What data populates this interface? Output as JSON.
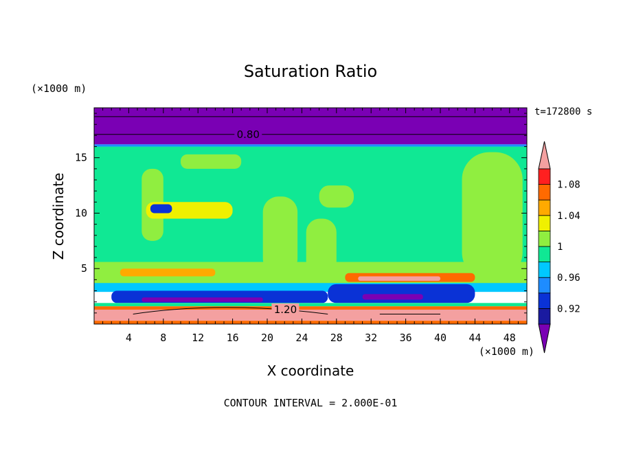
{
  "chart_data": {
    "type": "heatmap",
    "title": "Saturation Ratio",
    "xlabel": "X coordinate",
    "ylabel": "Z coordinate",
    "x_unit": "(×1000 m)",
    "y_unit": "(×1000 m)",
    "time_label": "t=172800 s",
    "footer": "CONTOUR INTERVAL = 2.000E-01",
    "xlim": [
      0,
      50
    ],
    "ylim": [
      0,
      19.5
    ],
    "x_ticks": [
      4,
      8,
      12,
      16,
      20,
      24,
      28,
      32,
      36,
      40,
      44,
      48
    ],
    "y_ticks": [
      5,
      10,
      15
    ],
    "contour_labels": [
      {
        "value": "0.80",
        "x": 17.8,
        "y": 17.1
      },
      {
        "value": "1.20",
        "x": 22.1,
        "y": 1.3
      }
    ],
    "colorbar": {
      "levels": [
        0.88,
        0.9,
        0.92,
        0.94,
        0.96,
        0.98,
        1.0,
        1.02,
        1.04,
        1.06,
        1.08,
        1.1,
        1.12
      ],
      "tick_labels": [
        "0.92",
        "0.96",
        "1",
        "1.04",
        "1.08"
      ],
      "colors": [
        "#7a00b4",
        "#1a1aa0",
        "#0a32d6",
        "#1e8cff",
        "#00c8ff",
        "#10e894",
        "#90ee40",
        "#f0f000",
        "#ffaa00",
        "#ff6a00",
        "#ff2020",
        "#f4a0a0"
      ]
    },
    "regions": [
      {
        "level": 0.8,
        "x": [
          0,
          50
        ],
        "y": [
          16.2,
          19.5
        ]
      },
      {
        "level": 0.95,
        "x": [
          0,
          50
        ],
        "y": [
          16.0,
          16.2
        ]
      },
      {
        "level": 0.99,
        "x": [
          0,
          50
        ],
        "y": [
          5.5,
          16.0
        ]
      },
      {
        "level": 1.01,
        "x": [
          5.5,
          8.0
        ],
        "y": [
          7.5,
          14.0
        ]
      },
      {
        "level": 1.01,
        "x": [
          19.5,
          23.5
        ],
        "y": [
          4.5,
          11.5
        ]
      },
      {
        "level": 1.01,
        "x": [
          24.5,
          28.0
        ],
        "y": [
          4.5,
          9.5
        ]
      },
      {
        "level": 1.01,
        "x": [
          26.0,
          30.0
        ],
        "y": [
          10.5,
          12.5
        ]
      },
      {
        "level": 1.01,
        "x": [
          10.0,
          17.0
        ],
        "y": [
          14.0,
          15.3
        ]
      },
      {
        "level": 1.01,
        "x": [
          42.5,
          49.5
        ],
        "y": [
          4.0,
          15.5
        ]
      },
      {
        "level": 1.03,
        "x": [
          6.0,
          16.0
        ],
        "y": [
          9.5,
          11.0
        ]
      },
      {
        "level": 0.93,
        "x": [
          6.5,
          9.0
        ],
        "y": [
          10.0,
          10.8
        ]
      },
      {
        "level": 1.01,
        "x": [
          0,
          50
        ],
        "y": [
          3.6,
          5.6
        ]
      },
      {
        "level": 1.04,
        "x": [
          3.0,
          14.0
        ],
        "y": [
          4.3,
          5.0
        ]
      },
      {
        "level": 1.07,
        "x": [
          29.0,
          44.0
        ],
        "y": [
          3.8,
          4.6
        ]
      },
      {
        "level": 1.11,
        "x": [
          30.5,
          40.0
        ],
        "y": [
          3.9,
          4.3
        ]
      },
      {
        "level": 0.97,
        "x": [
          0,
          50
        ],
        "y": [
          2.9,
          3.7
        ]
      },
      {
        "level": 0.93,
        "x": [
          2.0,
          27.0
        ],
        "y": [
          1.9,
          3.0
        ]
      },
      {
        "level": 0.93,
        "x": [
          27.0,
          44.0
        ],
        "y": [
          1.9,
          3.6
        ]
      },
      {
        "level": 0.89,
        "x": [
          5.5,
          19.5
        ],
        "y": [
          2.0,
          2.4
        ]
      },
      {
        "level": 0.89,
        "x": [
          31.0,
          38.0
        ],
        "y": [
          2.2,
          2.7
        ]
      },
      {
        "level": 0.99,
        "x": [
          0,
          50
        ],
        "y": [
          1.6,
          1.9
        ]
      },
      {
        "level": 1.07,
        "x": [
          0,
          50
        ],
        "y": [
          1.2,
          1.6
        ]
      },
      {
        "level": 1.13,
        "x": [
          0,
          50
        ],
        "y": [
          0.3,
          1.3
        ]
      },
      {
        "level": 1.07,
        "x": [
          0,
          50
        ],
        "y": [
          0,
          0.3
        ]
      }
    ]
  }
}
